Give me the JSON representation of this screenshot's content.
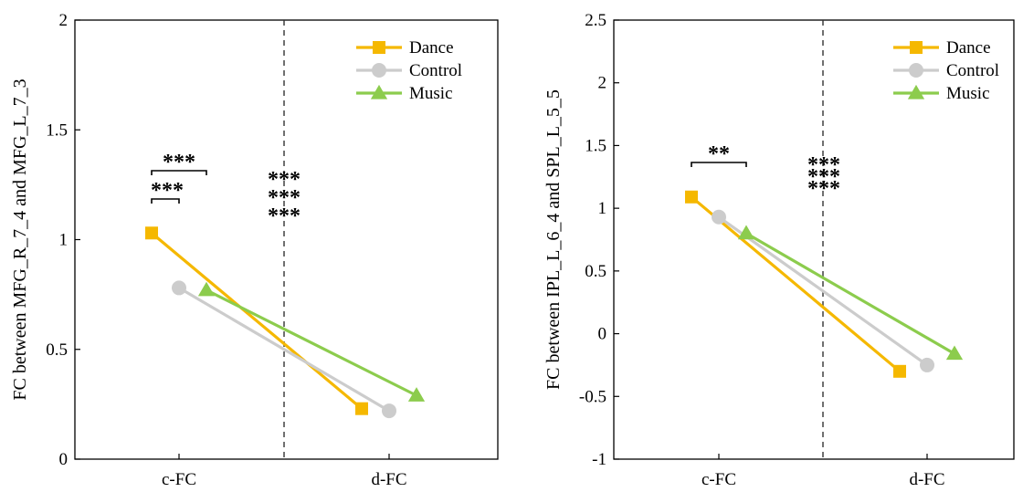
{
  "chart_data": [
    {
      "type": "line",
      "categories": [
        "c-FC",
        "d-FC"
      ],
      "ylabel": "FC  between MFG_R_7_4 and MFG_L_7_3",
      "ylim": [
        0,
        2
      ],
      "yticks": [
        "0",
        "0.5",
        "1",
        "1.5",
        "2"
      ],
      "grid": false,
      "legend_position": "top-right",
      "series": [
        {
          "name": "Dance",
          "marker": "square",
          "color": "#f5b800",
          "values": [
            1.03,
            0.23
          ]
        },
        {
          "name": "Control",
          "marker": "circle",
          "color": "#cccccc",
          "values": [
            0.78,
            0.22
          ]
        },
        {
          "name": "Music",
          "marker": "triangle",
          "color": "#8ccc4d",
          "values": [
            0.77,
            0.29
          ]
        }
      ],
      "annotations": [
        {
          "text": "***",
          "color": "#000000",
          "kind": "bracket",
          "comparison": "Dance vs Control"
        },
        {
          "text": "***",
          "color": "#000000",
          "kind": "bracket",
          "comparison": "Dance vs Music"
        },
        {
          "text": "***",
          "color": "#f5b800",
          "kind": "stars"
        },
        {
          "text": "***",
          "color": "#8ccc4d",
          "kind": "stars"
        },
        {
          "text": "***",
          "color": "#cccccc",
          "kind": "stars"
        }
      ]
    },
    {
      "type": "line",
      "categories": [
        "c-FC",
        "d-FC"
      ],
      "ylabel": "FC  between IPL_L_6_4 and SPL_L_5_5",
      "ylim": [
        -1,
        2.5
      ],
      "yticks": [
        "-1",
        "-0.5",
        "0",
        "0.5",
        "1",
        "1.5",
        "2",
        "2.5"
      ],
      "grid": false,
      "legend_position": "top-right",
      "series": [
        {
          "name": "Dance",
          "marker": "square",
          "color": "#f5b800",
          "values": [
            1.09,
            -0.3
          ]
        },
        {
          "name": "Control",
          "marker": "circle",
          "color": "#cccccc",
          "values": [
            0.93,
            -0.25
          ]
        },
        {
          "name": "Music",
          "marker": "triangle",
          "color": "#8ccc4d",
          "values": [
            0.8,
            -0.16
          ]
        }
      ],
      "annotations": [
        {
          "text": "**",
          "color": "#000000",
          "kind": "bracket",
          "comparison": "Dance vs Music"
        },
        {
          "text": "***",
          "color": "#f5b800",
          "kind": "stars"
        },
        {
          "text": "***",
          "color": "#8ccc4d",
          "kind": "stars"
        },
        {
          "text": "***",
          "color": "#cccccc",
          "kind": "stars"
        }
      ]
    }
  ]
}
